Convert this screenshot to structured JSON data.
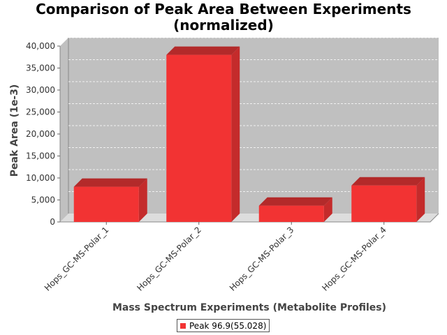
{
  "colors": {
    "bar_front": "#f23333",
    "bar_top": "#b32a2a",
    "bar_side": "#c42b2b",
    "plot_bg": "#c0c0c0",
    "plot_floor": "#dddddd",
    "gridline": "#ffffff"
  },
  "chart_data": {
    "type": "bar",
    "title": "Comparison of Peak Area Between Experiments (normalized)",
    "xlabel": "Mass Spectrum Experiments (Metabolite Profiles)",
    "ylabel": "Peak Area (1e-3)",
    "categories": [
      "Hops_GC-MS-Polar_1",
      "Hops_GC-MS-Polar_2",
      "Hops_GC-MS-Polar_3",
      "Hops_GC-MS-Polar_4"
    ],
    "series": [
      {
        "name": "Peak 96.9(55.028)",
        "values": [
          8000,
          38000,
          3700,
          8300
        ]
      }
    ],
    "ylim": [
      0,
      40000
    ],
    "yticks": [
      0,
      5000,
      10000,
      15000,
      20000,
      25000,
      30000,
      35000,
      40000
    ],
    "ytick_labels": [
      "0",
      "5,000",
      "10,000",
      "15,000",
      "20,000",
      "25,000",
      "30,000",
      "35,000",
      "40,000"
    ],
    "grid": true,
    "legend_position": "bottom-center",
    "style": "3d"
  }
}
